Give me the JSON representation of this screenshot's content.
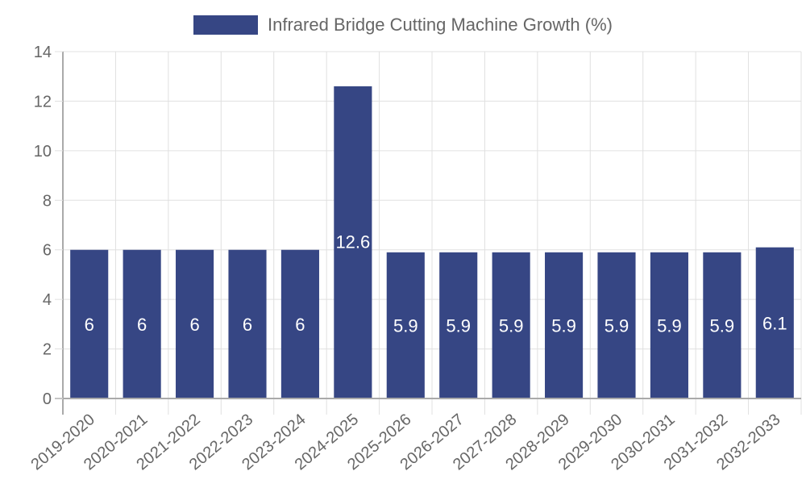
{
  "chart_data": {
    "type": "bar",
    "title": "",
    "xlabel": "",
    "ylabel": "",
    "legend": {
      "position": "top",
      "entries": [
        "Infrared Bridge Cutting Machine Growth (%)"
      ]
    },
    "categories": [
      "2019-2020",
      "2020-2021",
      "2021-2022",
      "2022-2023",
      "2023-2024",
      "2024-2025",
      "2025-2026",
      "2026-2027",
      "2027-2028",
      "2028-2029",
      "2029-2030",
      "2030-2031",
      "2031-2032",
      "2032-2033"
    ],
    "series": [
      {
        "name": "Infrared Bridge Cutting Machine Growth (%)",
        "values": [
          6,
          6,
          6,
          6,
          6,
          12.6,
          5.9,
          5.9,
          5.9,
          5.9,
          5.9,
          5.9,
          5.9,
          6.1
        ],
        "color": "#364684"
      }
    ],
    "ylim": [
      0,
      14
    ],
    "yticks": [
      0,
      2,
      4,
      6,
      8,
      10,
      12,
      14
    ],
    "grid": true,
    "data_labels": true
  },
  "legend": {
    "label": "Infrared Bridge Cutting Machine Growth (%)",
    "color": "#364684"
  },
  "colors": {
    "bar": "#364684",
    "grid": "#e0e0e0",
    "axis": "#aaaaaa",
    "text": "#666666"
  }
}
